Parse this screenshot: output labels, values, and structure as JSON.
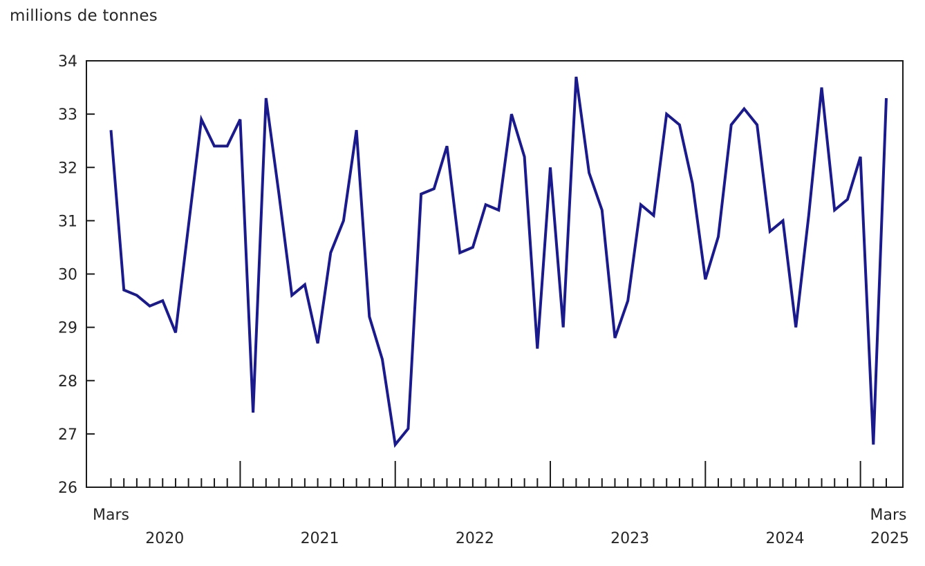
{
  "chart_data": {
    "type": "line",
    "title": "millions de tonnes",
    "ylabel": "millions de tonnes",
    "ylim": [
      26,
      34
    ],
    "yticks": [
      34,
      33,
      32,
      31,
      30,
      29,
      28,
      27,
      26
    ],
    "grid": false,
    "legend": "none",
    "x_axis": {
      "first_point_label": "Mars",
      "year_labels": [
        "2020",
        "2021",
        "2022",
        "2023",
        "2024"
      ],
      "last_point_month_label": "Mars",
      "last_point_year_label": "2025",
      "minor_tick_unit": "month",
      "major_tick_unit": "january-of-year"
    },
    "line_color": "#1a1a8c",
    "axis_color": "#1a1a1a",
    "text_color": "#262626",
    "points": [
      {
        "m": "2020-03",
        "v": 32.7
      },
      {
        "m": "2020-04",
        "v": 29.7
      },
      {
        "m": "2020-05",
        "v": 29.6
      },
      {
        "m": "2020-06",
        "v": 29.4
      },
      {
        "m": "2020-07",
        "v": 29.5
      },
      {
        "m": "2020-08",
        "v": 28.9
      },
      {
        "m": "2020-09",
        "v": 30.9
      },
      {
        "m": "2020-10",
        "v": 32.9
      },
      {
        "m": "2020-11",
        "v": 32.4
      },
      {
        "m": "2020-12",
        "v": 32.4
      },
      {
        "m": "2021-01",
        "v": 32.9
      },
      {
        "m": "2021-02",
        "v": 27.4
      },
      {
        "m": "2021-03",
        "v": 33.3
      },
      {
        "m": "2021-04",
        "v": 31.5
      },
      {
        "m": "2021-05",
        "v": 29.6
      },
      {
        "m": "2021-06",
        "v": 29.8
      },
      {
        "m": "2021-07",
        "v": 28.7
      },
      {
        "m": "2021-08",
        "v": 30.4
      },
      {
        "m": "2021-09",
        "v": 31.0
      },
      {
        "m": "2021-10",
        "v": 32.7
      },
      {
        "m": "2021-11",
        "v": 29.2
      },
      {
        "m": "2021-12",
        "v": 28.4
      },
      {
        "m": "2022-01",
        "v": 26.8
      },
      {
        "m": "2022-02",
        "v": 27.1
      },
      {
        "m": "2022-03",
        "v": 31.5
      },
      {
        "m": "2022-04",
        "v": 31.6
      },
      {
        "m": "2022-05",
        "v": 32.4
      },
      {
        "m": "2022-06",
        "v": 30.4
      },
      {
        "m": "2022-07",
        "v": 30.5
      },
      {
        "m": "2022-08",
        "v": 31.3
      },
      {
        "m": "2022-09",
        "v": 31.2
      },
      {
        "m": "2022-10",
        "v": 33.0
      },
      {
        "m": "2022-11",
        "v": 32.2
      },
      {
        "m": "2022-12",
        "v": 28.6
      },
      {
        "m": "2023-01",
        "v": 32.0
      },
      {
        "m": "2023-02",
        "v": 29.0
      },
      {
        "m": "2023-03",
        "v": 33.7
      },
      {
        "m": "2023-04",
        "v": 31.9
      },
      {
        "m": "2023-05",
        "v": 31.2
      },
      {
        "m": "2023-06",
        "v": 28.8
      },
      {
        "m": "2023-07",
        "v": 29.5
      },
      {
        "m": "2023-08",
        "v": 31.3
      },
      {
        "m": "2023-09",
        "v": 31.1
      },
      {
        "m": "2023-10",
        "v": 33.0
      },
      {
        "m": "2023-11",
        "v": 32.8
      },
      {
        "m": "2023-12",
        "v": 31.7
      },
      {
        "m": "2024-01",
        "v": 29.9
      },
      {
        "m": "2024-02",
        "v": 30.7
      },
      {
        "m": "2024-03",
        "v": 32.8
      },
      {
        "m": "2024-04",
        "v": 33.1
      },
      {
        "m": "2024-05",
        "v": 32.8
      },
      {
        "m": "2024-06",
        "v": 30.8
      },
      {
        "m": "2024-07",
        "v": 31.0
      },
      {
        "m": "2024-08",
        "v": 29.0
      },
      {
        "m": "2024-09",
        "v": 31.1
      },
      {
        "m": "2024-10",
        "v": 33.5
      },
      {
        "m": "2024-11",
        "v": 31.2
      },
      {
        "m": "2024-12",
        "v": 31.4
      },
      {
        "m": "2025-01",
        "v": 32.2
      },
      {
        "m": "2025-02",
        "v": 26.8
      },
      {
        "m": "2025-03",
        "v": 33.3
      }
    ]
  }
}
